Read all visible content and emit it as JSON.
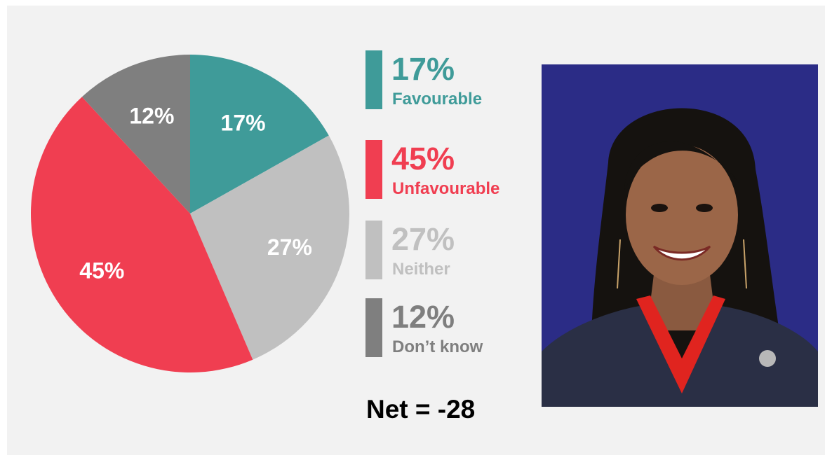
{
  "chart_data": {
    "type": "pie",
    "slices": [
      {
        "label": "Favourable",
        "value": 17,
        "display": "17%",
        "color": "#3f9b99",
        "label_color": "#ffffff"
      },
      {
        "label": "Neither",
        "value": 27,
        "display": "27%",
        "color": "#c0c0c0",
        "label_color": "#ffffff"
      },
      {
        "label": "Unfavourable",
        "value": 45,
        "display": "45%",
        "color": "#f03e51",
        "label_color": "#ffffff"
      },
      {
        "label": "Don’t know",
        "value": 12,
        "display": "12%",
        "color": "#7f7f7f",
        "label_color": "#ffffff"
      }
    ],
    "start_angle": "12 o'clock",
    "direction": "clockwise"
  },
  "legend": [
    {
      "pct": "17%",
      "label": "Favourable",
      "color": "#3f9b99"
    },
    {
      "pct": "45%",
      "label": "Unfavourable",
      "color": "#f03e51"
    },
    {
      "pct": "27%",
      "label": "Neither",
      "color": "#c0c0c0"
    },
    {
      "pct": "12%",
      "label": "Don’t know",
      "color": "#7f7f7f"
    }
  ],
  "net": "Net = -28",
  "photo": {
    "background": "#2b2c86",
    "subject": "portrait"
  }
}
